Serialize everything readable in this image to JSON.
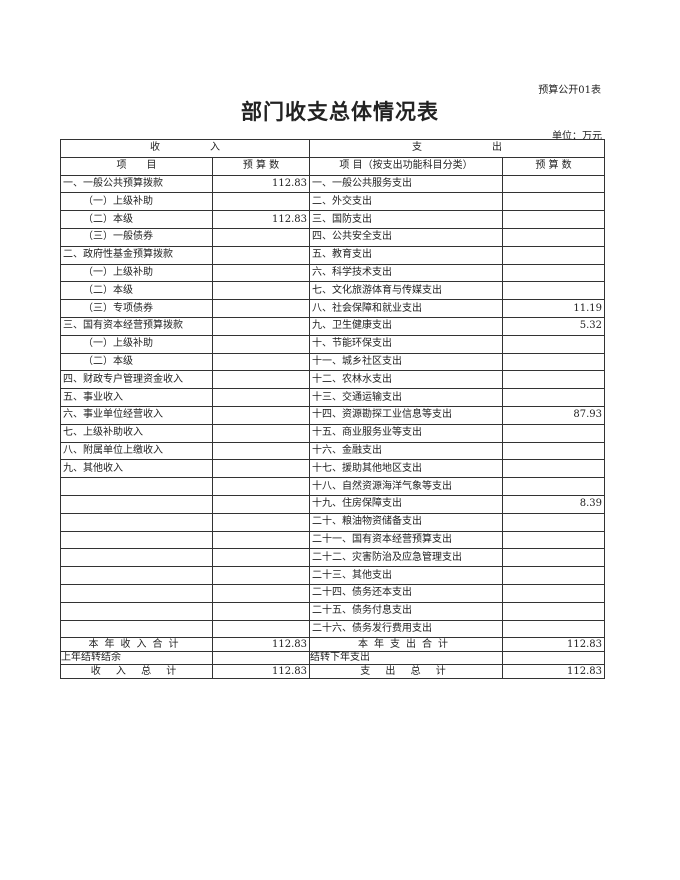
{
  "form_code": "预算公开01表",
  "title": "部门收支总体情况表",
  "unit": "单位：万元",
  "header": {
    "income": "收　　　　　入",
    "expense": "支　　　　　　　出",
    "item": "项　　目",
    "budget": "预 算 数",
    "expense_item": "项 目（按支出功能科目分类）",
    "expense_budget": "预 算 数"
  },
  "rows": [
    {
      "in_item": "一、一般公共预算拨款",
      "in_val": "112.83",
      "out_item": "一、一般公共服务支出",
      "out_val": ""
    },
    {
      "in_item": "（一）上级补助",
      "in_val": "",
      "out_item": "二、外交支出",
      "out_val": "",
      "indent": true
    },
    {
      "in_item": "（二）本级",
      "in_val": "112.83",
      "out_item": "三、国防支出",
      "out_val": "",
      "indent": true
    },
    {
      "in_item": "（三）一般债券",
      "in_val": "",
      "out_item": "四、公共安全支出",
      "out_val": "",
      "indent": true
    },
    {
      "in_item": "二、政府性基金预算拨款",
      "in_val": "",
      "out_item": "五、教育支出",
      "out_val": ""
    },
    {
      "in_item": "（一）上级补助",
      "in_val": "",
      "out_item": "六、科学技术支出",
      "out_val": "",
      "indent": true
    },
    {
      "in_item": "（二）本级",
      "in_val": "",
      "out_item": "七、文化旅游体育与传媒支出",
      "out_val": "",
      "indent": true
    },
    {
      "in_item": "（三）专项债券",
      "in_val": "",
      "out_item": "八、社会保障和就业支出",
      "out_val": "11.19",
      "indent": true
    },
    {
      "in_item": "三、国有资本经营预算拨款",
      "in_val": "",
      "out_item": "九、卫生健康支出",
      "out_val": "5.32"
    },
    {
      "in_item": "（一）上级补助",
      "in_val": "",
      "out_item": "十、节能环保支出",
      "out_val": "",
      "indent": true
    },
    {
      "in_item": "（二）本级",
      "in_val": "",
      "out_item": "十一、城乡社区支出",
      "out_val": "",
      "indent": true
    },
    {
      "in_item": "四、财政专户管理资金收入",
      "in_val": "",
      "out_item": "十二、农林水支出",
      "out_val": ""
    },
    {
      "in_item": "五、事业收入",
      "in_val": "",
      "out_item": "十三、交通运输支出",
      "out_val": ""
    },
    {
      "in_item": "六、事业单位经营收入",
      "in_val": "",
      "out_item": "十四、资源勘探工业信息等支出",
      "out_val": "87.93"
    },
    {
      "in_item": "七、上级补助收入",
      "in_val": "",
      "out_item": "十五、商业服务业等支出",
      "out_val": ""
    },
    {
      "in_item": "八、附属单位上缴收入",
      "in_val": "",
      "out_item": "十六、金融支出",
      "out_val": ""
    },
    {
      "in_item": "九、其他收入",
      "in_val": "",
      "out_item": "十七、援助其他地区支出",
      "out_val": ""
    },
    {
      "in_item": "",
      "in_val": "",
      "out_item": "十八、自然资源海洋气象等支出",
      "out_val": ""
    },
    {
      "in_item": "",
      "in_val": "",
      "out_item": "十九、住房保障支出",
      "out_val": "8.39"
    },
    {
      "in_item": "",
      "in_val": "",
      "out_item": "二十、粮油物资储备支出",
      "out_val": ""
    },
    {
      "in_item": "",
      "in_val": "",
      "out_item": "二十一、国有资本经营预算支出",
      "out_val": ""
    },
    {
      "in_item": "",
      "in_val": "",
      "out_item": "二十二、灾害防治及应急管理支出",
      "out_val": ""
    },
    {
      "in_item": "",
      "in_val": "",
      "out_item": "二十三、其他支出",
      "out_val": ""
    },
    {
      "in_item": "",
      "in_val": "",
      "out_item": "二十四、债务还本支出",
      "out_val": ""
    },
    {
      "in_item": "",
      "in_val": "",
      "out_item": "二十五、债务付息支出",
      "out_val": ""
    },
    {
      "in_item": "",
      "in_val": "",
      "out_item": "二十六、债务发行费用支出",
      "out_val": ""
    }
  ],
  "totals": {
    "year_income_label": "本年收入合计",
    "year_income": "112.83",
    "year_expense_label": "本年支出合计",
    "year_expense": "112.83",
    "carry_in_label": "上年结转结余",
    "carry_in": "",
    "carry_out_label": "结转下年支出",
    "carry_out": "",
    "income_total_label": "收 入 总 计",
    "income_total": "112.83",
    "expense_total_label": "支 出 总 计",
    "expense_total": "112.83"
  }
}
